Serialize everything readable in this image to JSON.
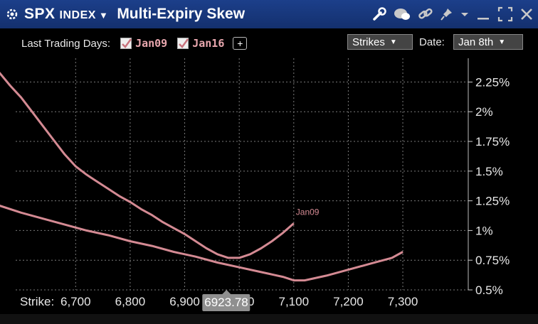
{
  "titlebar": {
    "ticker": "SPX",
    "ticker_suffix": "INDEX",
    "title": "Multi-Expiry Skew",
    "icons": [
      "gear-icon",
      "wrench-icon",
      "chat-icon",
      "link-icon",
      "pin-icon",
      "chevron-down-icon",
      "minimize-icon",
      "maximize-icon",
      "close-icon"
    ]
  },
  "toolbar": {
    "last_trading_days_label": "Last Trading Days:",
    "expiries": [
      {
        "label": "Jan09",
        "checked": true
      },
      {
        "label": "Jan16",
        "checked": true
      }
    ],
    "add_label": "+",
    "strikes_label": "Strikes",
    "date_label": "Date:",
    "date_value": "Jan 8th"
  },
  "xaxis": {
    "label": "Strike:",
    "cursor_value": "6923.78"
  },
  "colors": {
    "series": "#d48a93",
    "titlebar": "#1a3a82",
    "grid": "#7a7a7a"
  },
  "chart_data": {
    "type": "line",
    "xlabel": "Strike:",
    "ylabel": "",
    "x_ticks": [
      "6,700",
      "6,800",
      "6,900",
      "7,000",
      "7,100",
      "7,200",
      "7,300"
    ],
    "y_ticks": [
      "2.25%",
      "2%",
      "1.75%",
      "1.5%",
      "1.25%",
      "1%",
      "0.75%",
      "0.5%"
    ],
    "xlim": [
      6590,
      7420
    ],
    "ylim": [
      0.5,
      2.45
    ],
    "grid": true,
    "series": [
      {
        "name": "Jan09",
        "x": [
          6560,
          6580,
          6600,
          6620,
          6640,
          6660,
          6680,
          6700,
          6720,
          6740,
          6760,
          6780,
          6800,
          6820,
          6840,
          6860,
          6880,
          6900,
          6920,
          6940,
          6960,
          6980,
          7000,
          7020,
          7040,
          7060,
          7080,
          7100
        ],
        "y": [
          2.33,
          2.22,
          2.12,
          2.0,
          1.88,
          1.76,
          1.64,
          1.54,
          1.47,
          1.41,
          1.35,
          1.29,
          1.24,
          1.18,
          1.13,
          1.07,
          1.02,
          0.97,
          0.91,
          0.85,
          0.8,
          0.77,
          0.77,
          0.8,
          0.85,
          0.91,
          0.98,
          1.06
        ]
      },
      {
        "name": "Jan16",
        "x": [
          6560,
          6600,
          6640,
          6680,
          6720,
          6760,
          6800,
          6840,
          6880,
          6920,
          6960,
          7000,
          7040,
          7080,
          7100,
          7120,
          7160,
          7200,
          7240,
          7280,
          7300
        ],
        "y": [
          1.21,
          1.15,
          1.1,
          1.05,
          1.0,
          0.96,
          0.91,
          0.87,
          0.82,
          0.78,
          0.73,
          0.69,
          0.65,
          0.61,
          0.58,
          0.58,
          0.62,
          0.67,
          0.72,
          0.77,
          0.82
        ]
      }
    ],
    "annotations": [
      {
        "text": "Jan09",
        "x": 7100,
        "y": 1.06
      }
    ]
  }
}
